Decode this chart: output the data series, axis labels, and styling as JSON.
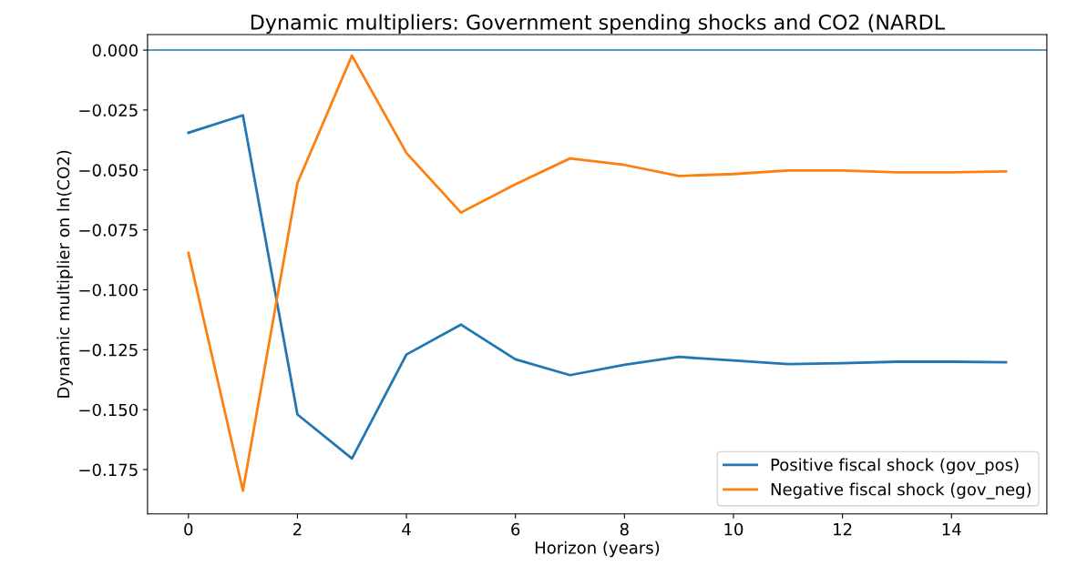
{
  "chart_data": {
    "type": "line",
    "title": "Dynamic multipliers: Government spending shocks and CO2 (NARDL",
    "xlabel": "Horizon (years)",
    "ylabel": "Dynamic multiplier on ln(CO2)",
    "x": [
      0,
      1,
      2,
      3,
      4,
      5,
      6,
      7,
      8,
      9,
      10,
      11,
      12,
      13,
      14,
      15
    ],
    "series": [
      {
        "name": "Positive fiscal shock (gov_pos)",
        "color": "#1f77b4",
        "values": [
          -0.0345,
          -0.0272,
          -0.152,
          -0.1704,
          -0.127,
          -0.1145,
          -0.129,
          -0.1356,
          -0.1313,
          -0.128,
          -0.1295,
          -0.131,
          -0.1306,
          -0.13,
          -0.13,
          -0.1302
        ]
      },
      {
        "name": "Negative fiscal shock (gov_neg)",
        "color": "#ff7f0e",
        "values": [
          -0.0846,
          -0.1838,
          -0.0555,
          -0.0023,
          -0.0429,
          -0.0678,
          -0.056,
          -0.0452,
          -0.0479,
          -0.0525,
          -0.0517,
          -0.0502,
          -0.0502,
          -0.051,
          -0.051,
          -0.0506
        ]
      }
    ],
    "xlim": [
      -0.75,
      15.75
    ],
    "xticks": [
      0,
      2,
      4,
      6,
      8,
      10,
      12,
      14
    ],
    "ylim": [
      -0.1935,
      0.0065
    ],
    "yticks": [
      {
        "value": 0,
        "label": "0.000"
      },
      {
        "value": -0.025,
        "label": "−0.025"
      },
      {
        "value": -0.05,
        "label": "−0.050"
      },
      {
        "value": -0.075,
        "label": "−0.075"
      },
      {
        "value": -0.1,
        "label": "−0.100"
      },
      {
        "value": -0.125,
        "label": "−0.125"
      },
      {
        "value": -0.15,
        "label": "−0.150"
      },
      {
        "value": -0.175,
        "label": "−0.175"
      }
    ],
    "ref_lines": [
      {
        "axis": "y",
        "value": 0,
        "color": "#1f77b4"
      }
    ],
    "legend": "bottom right",
    "grid": false
  }
}
